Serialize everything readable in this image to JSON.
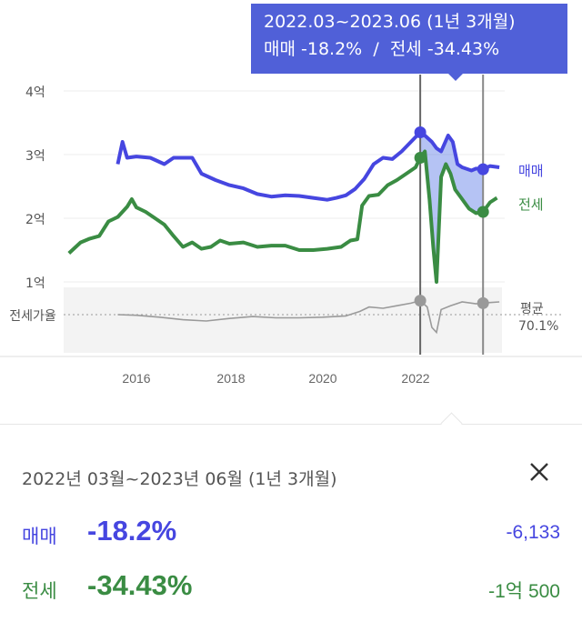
{
  "chart_data": {
    "type": "line",
    "x_unit": "year",
    "xlim": [
      2014.5,
      2023.8
    ],
    "x_ticks": [
      "2016",
      "2018",
      "2020",
      "2022"
    ],
    "y_ticks": [
      "4억",
      "3억",
      "2억",
      "1억"
    ],
    "ylim_eok": [
      1.0,
      4.0
    ],
    "series": [
      {
        "name": "매매",
        "color": "#4646e0",
        "points": [
          [
            2015.6,
            2.85
          ],
          [
            2015.7,
            3.2
          ],
          [
            2015.8,
            2.95
          ],
          [
            2016.0,
            2.97
          ],
          [
            2016.3,
            2.95
          ],
          [
            2016.6,
            2.85
          ],
          [
            2016.8,
            2.95
          ],
          [
            2017.0,
            2.95
          ],
          [
            2017.2,
            2.95
          ],
          [
            2017.4,
            2.7
          ],
          [
            2017.7,
            2.6
          ],
          [
            2018.0,
            2.52
          ],
          [
            2018.3,
            2.47
          ],
          [
            2018.6,
            2.38
          ],
          [
            2018.9,
            2.34
          ],
          [
            2019.2,
            2.36
          ],
          [
            2019.5,
            2.35
          ],
          [
            2019.8,
            2.32
          ],
          [
            2020.1,
            2.29
          ],
          [
            2020.3,
            2.32
          ],
          [
            2020.5,
            2.36
          ],
          [
            2020.7,
            2.46
          ],
          [
            2020.9,
            2.62
          ],
          [
            2021.1,
            2.85
          ],
          [
            2021.3,
            2.95
          ],
          [
            2021.5,
            2.93
          ],
          [
            2021.7,
            3.05
          ],
          [
            2021.9,
            3.2
          ],
          [
            2022.1,
            3.35
          ],
          [
            2022.2,
            3.3
          ],
          [
            2022.35,
            3.2
          ],
          [
            2022.45,
            3.1
          ],
          [
            2022.55,
            3.05
          ],
          [
            2022.7,
            3.3
          ],
          [
            2022.8,
            3.2
          ],
          [
            2022.9,
            2.85
          ],
          [
            2023.0,
            2.8
          ],
          [
            2023.2,
            2.75
          ],
          [
            2023.3,
            2.78
          ],
          [
            2023.45,
            2.77
          ],
          [
            2023.6,
            2.82
          ],
          [
            2023.8,
            2.8
          ]
        ]
      },
      {
        "name": "전세",
        "color": "#3a8c43",
        "points": [
          [
            2014.55,
            1.45
          ],
          [
            2014.8,
            1.62
          ],
          [
            2015.0,
            1.68
          ],
          [
            2015.2,
            1.72
          ],
          [
            2015.4,
            1.95
          ],
          [
            2015.6,
            2.02
          ],
          [
            2015.8,
            2.18
          ],
          [
            2015.9,
            2.3
          ],
          [
            2016.0,
            2.17
          ],
          [
            2016.2,
            2.1
          ],
          [
            2016.4,
            2.0
          ],
          [
            2016.6,
            1.9
          ],
          [
            2016.8,
            1.72
          ],
          [
            2017.0,
            1.55
          ],
          [
            2017.2,
            1.62
          ],
          [
            2017.4,
            1.52
          ],
          [
            2017.6,
            1.55
          ],
          [
            2017.8,
            1.65
          ],
          [
            2018.0,
            1.6
          ],
          [
            2018.3,
            1.62
          ],
          [
            2018.6,
            1.55
          ],
          [
            2018.9,
            1.57
          ],
          [
            2019.2,
            1.57
          ],
          [
            2019.5,
            1.5
          ],
          [
            2019.8,
            1.5
          ],
          [
            2020.1,
            1.52
          ],
          [
            2020.4,
            1.55
          ],
          [
            2020.6,
            1.65
          ],
          [
            2020.75,
            1.67
          ],
          [
            2020.85,
            2.2
          ],
          [
            2021.0,
            2.35
          ],
          [
            2021.2,
            2.37
          ],
          [
            2021.4,
            2.52
          ],
          [
            2021.6,
            2.6
          ],
          [
            2021.8,
            2.7
          ],
          [
            2022.0,
            2.8
          ],
          [
            2022.1,
            2.95
          ],
          [
            2022.2,
            3.05
          ],
          [
            2022.3,
            2.3
          ],
          [
            2022.38,
            1.55
          ],
          [
            2022.45,
            1.0
          ],
          [
            2022.55,
            2.65
          ],
          [
            2022.65,
            2.85
          ],
          [
            2022.75,
            2.7
          ],
          [
            2022.85,
            2.45
          ],
          [
            2023.0,
            2.3
          ],
          [
            2023.15,
            2.15
          ],
          [
            2023.3,
            2.08
          ],
          [
            2023.45,
            2.1
          ],
          [
            2023.6,
            2.25
          ],
          [
            2023.75,
            2.32
          ]
        ]
      }
    ],
    "ratio": {
      "label": "전세가율",
      "avg_label": "평균",
      "avg_value": "70.1%",
      "points": [
        [
          2015.6,
          50
        ],
        [
          2016.0,
          49
        ],
        [
          2016.5,
          46
        ],
        [
          2017.0,
          42
        ],
        [
          2017.5,
          40
        ],
        [
          2018.0,
          44
        ],
        [
          2018.5,
          47
        ],
        [
          2019.0,
          45
        ],
        [
          2019.5,
          45
        ],
        [
          2020.0,
          46
        ],
        [
          2020.5,
          48
        ],
        [
          2020.8,
          55
        ],
        [
          2021.0,
          62
        ],
        [
          2021.3,
          60
        ],
        [
          2021.6,
          64
        ],
        [
          2021.9,
          68
        ],
        [
          2022.1,
          72
        ],
        [
          2022.25,
          62
        ],
        [
          2022.35,
          30
        ],
        [
          2022.45,
          22
        ],
        [
          2022.55,
          58
        ],
        [
          2022.75,
          64
        ],
        [
          2023.0,
          70
        ],
        [
          2023.3,
          67
        ],
        [
          2023.6,
          69
        ],
        [
          2023.8,
          70
        ]
      ]
    },
    "selection": {
      "start": 2022.1,
      "end": 2023.45
    },
    "grid": "horizontal"
  },
  "tooltip": {
    "range": "2022.03~2023.06 (1년 3개월)",
    "sale_label": "매매",
    "sale_pct": "-18.2%",
    "separator": "/",
    "jeonse_label": "전세",
    "jeonse_pct": "-34.43%"
  },
  "panel": {
    "range": "2022년 03월~2023년 06월 (1년 3개월)",
    "sale": {
      "label": "매매",
      "pct": "-18.2%",
      "amount": "-6,133"
    },
    "jeonse": {
      "label": "전세",
      "pct": "-34.43%",
      "amount": "-1억 500"
    }
  },
  "colors": {
    "sale": "#4646e0",
    "jeonse": "#3a8c43",
    "tooltip_bg": "#5060d8",
    "ratio": "#999999"
  }
}
